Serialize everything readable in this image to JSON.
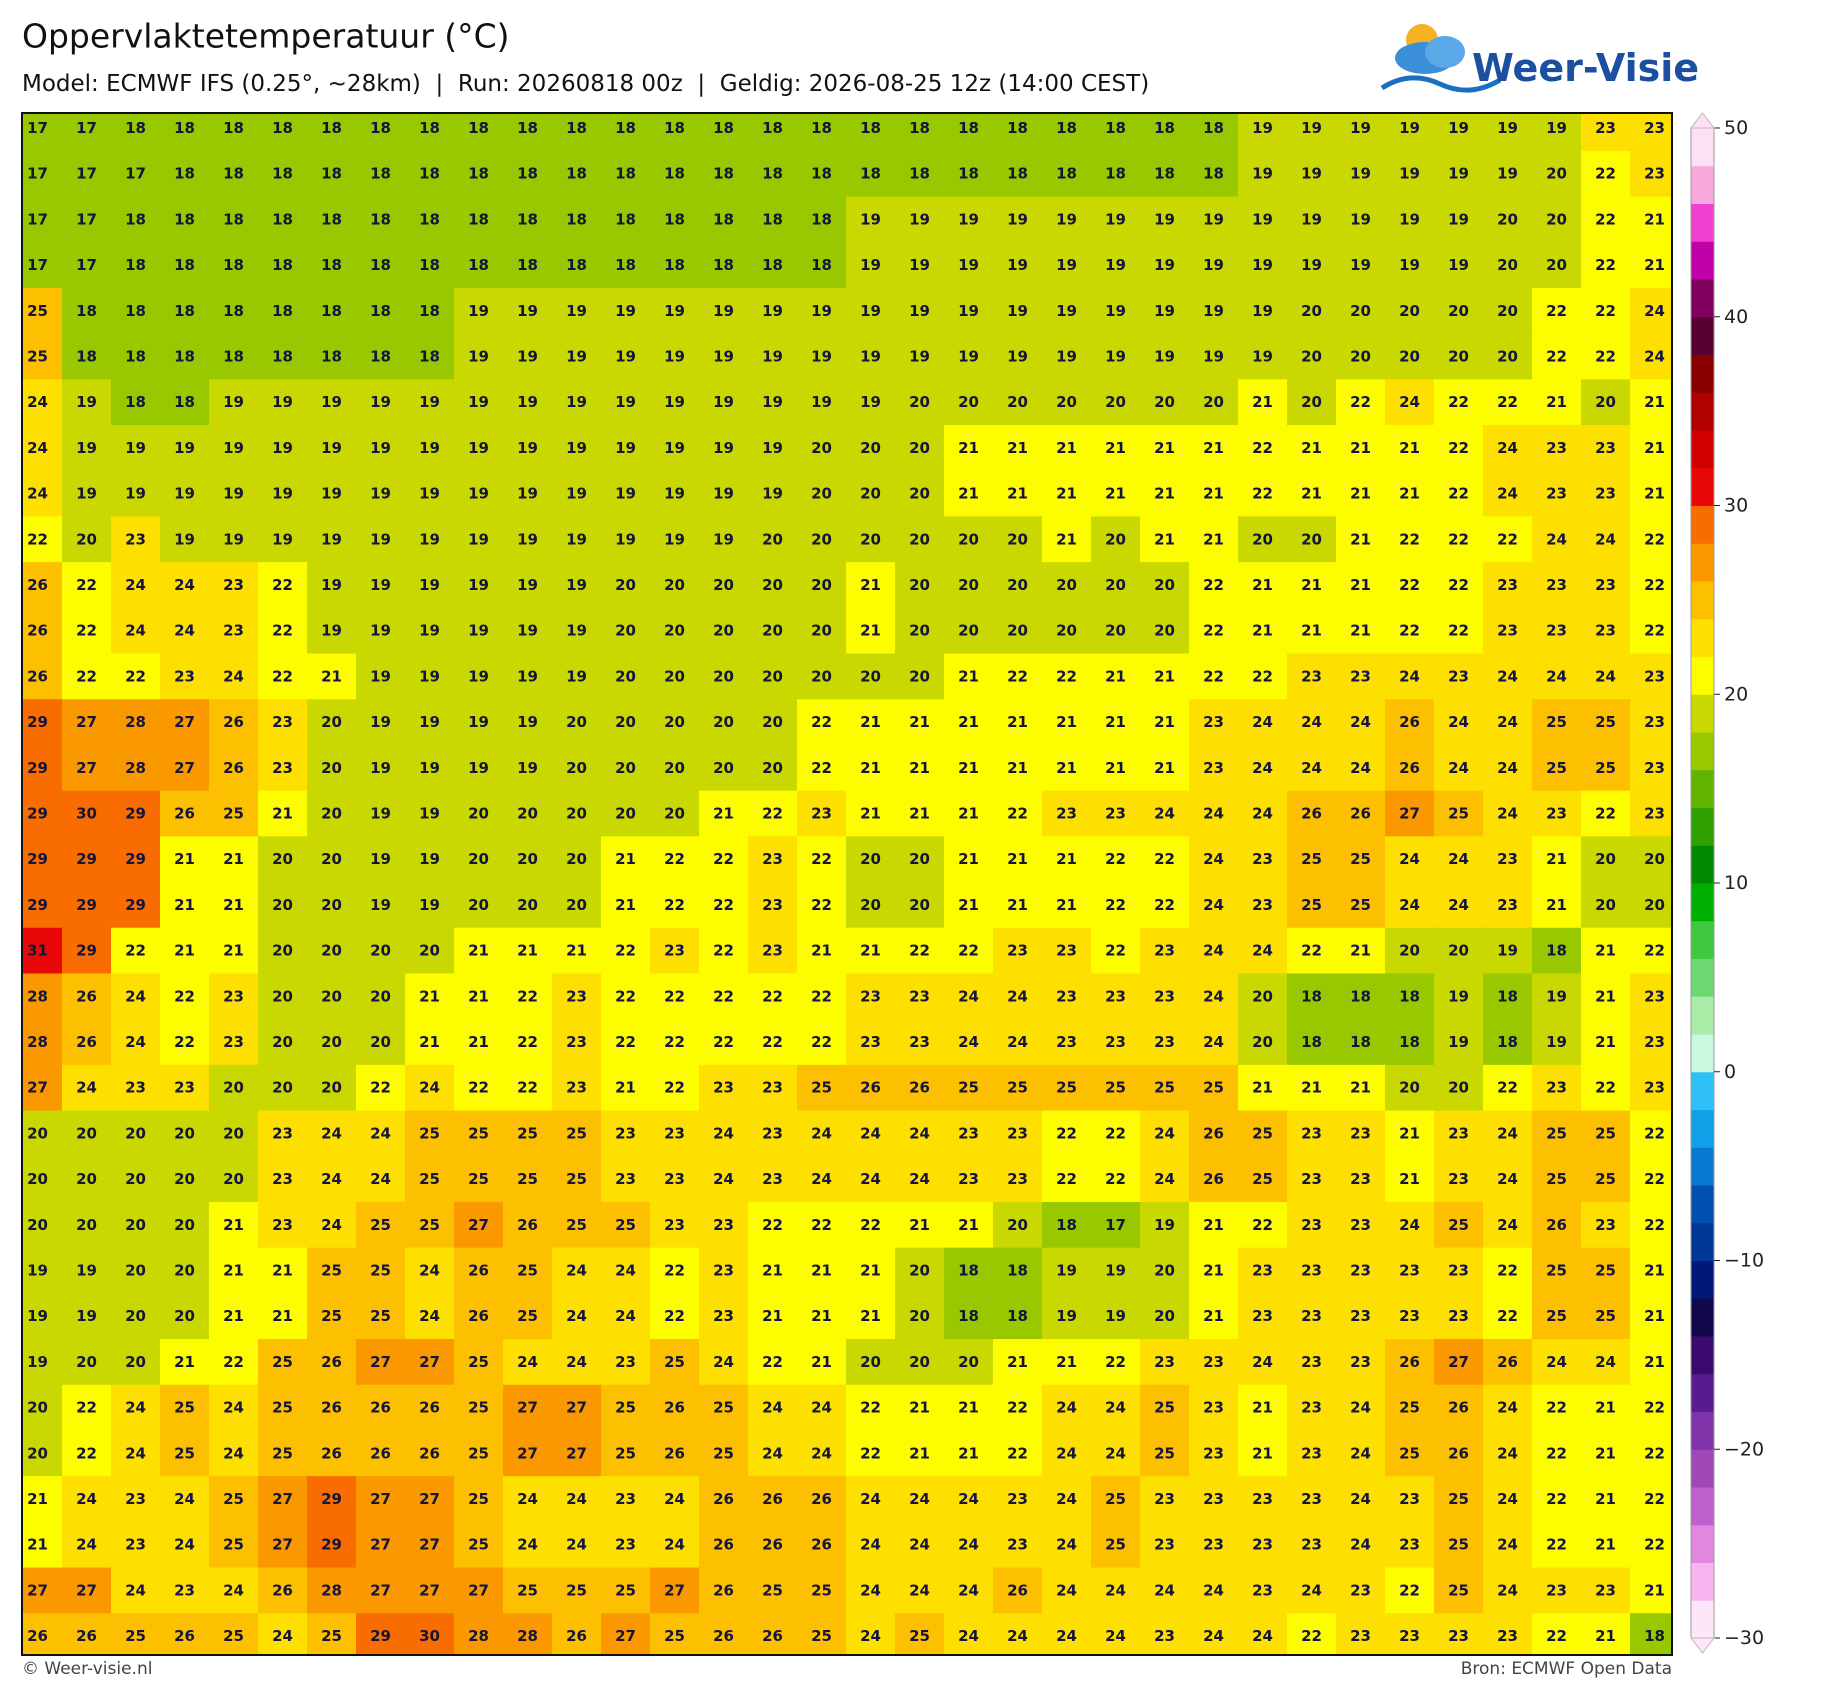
{
  "header": {
    "title": "Oppervlaktetemperatuur (°C)",
    "subtitle": "Model: ECMWF IFS (0.25°, ~28km)  |  Run: 20260818 00z  |  Geldig: 2026-08-25 12z (14:00 CEST)"
  },
  "logo": {
    "text": "Weer-Visie"
  },
  "map": {
    "values": [
      [
        17,
        17,
        18,
        18,
        18,
        18,
        18,
        18,
        18,
        18,
        18,
        18,
        18,
        18,
        18,
        18,
        18,
        18,
        18,
        18,
        18,
        18,
        18,
        18,
        18,
        19,
        19,
        19,
        19,
        19,
        19,
        19,
        23,
        23
      ],
      [
        17,
        17,
        17,
        18,
        18,
        18,
        18,
        18,
        18,
        18,
        18,
        18,
        18,
        18,
        18,
        18,
        18,
        18,
        18,
        18,
        18,
        18,
        18,
        18,
        18,
        19,
        19,
        19,
        19,
        19,
        19,
        20,
        22,
        23
      ],
      [
        17,
        17,
        18,
        18,
        18,
        18,
        18,
        18,
        18,
        18,
        18,
        18,
        18,
        18,
        18,
        18,
        18,
        19,
        19,
        19,
        19,
        19,
        19,
        19,
        19,
        19,
        19,
        19,
        19,
        19,
        20,
        20,
        22,
        21
      ],
      [
        17,
        17,
        18,
        18,
        18,
        18,
        18,
        18,
        18,
        18,
        18,
        18,
        18,
        18,
        18,
        18,
        18,
        19,
        19,
        19,
        19,
        19,
        19,
        19,
        19,
        19,
        19,
        19,
        19,
        19,
        20,
        20,
        22,
        21
      ],
      [
        25,
        18,
        18,
        18,
        18,
        18,
        18,
        18,
        18,
        19,
        19,
        19,
        19,
        19,
        19,
        19,
        19,
        19,
        19,
        19,
        19,
        19,
        19,
        19,
        19,
        19,
        20,
        20,
        20,
        20,
        20,
        22,
        22,
        24
      ],
      [
        25,
        18,
        18,
        18,
        18,
        18,
        18,
        18,
        18,
        19,
        19,
        19,
        19,
        19,
        19,
        19,
        19,
        19,
        19,
        19,
        19,
        19,
        19,
        19,
        19,
        19,
        20,
        20,
        20,
        20,
        20,
        22,
        22,
        24
      ],
      [
        24,
        19,
        18,
        18,
        19,
        19,
        19,
        19,
        19,
        19,
        19,
        19,
        19,
        19,
        19,
        19,
        19,
        19,
        20,
        20,
        20,
        20,
        20,
        20,
        20,
        21,
        20,
        22,
        24,
        22,
        22,
        21,
        20,
        21
      ],
      [
        24,
        19,
        19,
        19,
        19,
        19,
        19,
        19,
        19,
        19,
        19,
        19,
        19,
        19,
        19,
        19,
        20,
        20,
        20,
        21,
        21,
        21,
        21,
        21,
        21,
        22,
        21,
        21,
        21,
        22,
        24,
        23,
        23,
        21
      ],
      [
        24,
        19,
        19,
        19,
        19,
        19,
        19,
        19,
        19,
        19,
        19,
        19,
        19,
        19,
        19,
        19,
        20,
        20,
        20,
        21,
        21,
        21,
        21,
        21,
        21,
        22,
        21,
        21,
        21,
        22,
        24,
        23,
        23,
        21
      ],
      [
        22,
        20,
        23,
        19,
        19,
        19,
        19,
        19,
        19,
        19,
        19,
        19,
        19,
        19,
        19,
        20,
        20,
        20,
        20,
        20,
        20,
        21,
        20,
        21,
        21,
        20,
        20,
        21,
        22,
        22,
        22,
        24,
        24,
        22
      ],
      [
        26,
        22,
        24,
        24,
        23,
        22,
        19,
        19,
        19,
        19,
        19,
        19,
        20,
        20,
        20,
        20,
        20,
        21,
        20,
        20,
        20,
        20,
        20,
        20,
        22,
        21,
        21,
        21,
        22,
        22,
        23,
        23,
        23,
        22
      ],
      [
        26,
        22,
        24,
        24,
        23,
        22,
        19,
        19,
        19,
        19,
        19,
        19,
        20,
        20,
        20,
        20,
        20,
        21,
        20,
        20,
        20,
        20,
        20,
        20,
        22,
        21,
        21,
        21,
        22,
        22,
        23,
        23,
        23,
        22
      ],
      [
        26,
        22,
        22,
        23,
        24,
        22,
        21,
        19,
        19,
        19,
        19,
        19,
        20,
        20,
        20,
        20,
        20,
        20,
        20,
        21,
        22,
        22,
        21,
        21,
        22,
        22,
        23,
        23,
        24,
        23,
        24,
        24,
        24,
        23
      ],
      [
        29,
        27,
        28,
        27,
        26,
        23,
        20,
        19,
        19,
        19,
        19,
        20,
        20,
        20,
        20,
        20,
        22,
        21,
        21,
        21,
        21,
        21,
        21,
        21,
        23,
        24,
        24,
        24,
        26,
        24,
        24,
        25,
        25,
        23
      ],
      [
        29,
        27,
        28,
        27,
        26,
        23,
        20,
        19,
        19,
        19,
        19,
        20,
        20,
        20,
        20,
        20,
        22,
        21,
        21,
        21,
        21,
        21,
        21,
        21,
        23,
        24,
        24,
        24,
        26,
        24,
        24,
        25,
        25,
        23
      ],
      [
        29,
        30,
        29,
        26,
        25,
        21,
        20,
        19,
        19,
        20,
        20,
        20,
        20,
        20,
        21,
        22,
        23,
        21,
        21,
        21,
        22,
        23,
        23,
        24,
        24,
        24,
        26,
        26,
        27,
        25,
        24,
        23,
        22,
        23
      ],
      [
        29,
        29,
        29,
        21,
        21,
        20,
        20,
        19,
        19,
        20,
        20,
        20,
        21,
        22,
        22,
        23,
        22,
        20,
        20,
        21,
        21,
        21,
        22,
        22,
        24,
        23,
        25,
        25,
        24,
        24,
        23,
        21,
        20,
        20
      ],
      [
        29,
        29,
        29,
        21,
        21,
        20,
        20,
        19,
        19,
        20,
        20,
        20,
        21,
        22,
        22,
        23,
        22,
        20,
        20,
        21,
        21,
        21,
        22,
        22,
        24,
        23,
        25,
        25,
        24,
        24,
        23,
        21,
        20,
        20
      ],
      [
        31,
        29,
        22,
        21,
        21,
        20,
        20,
        20,
        20,
        21,
        21,
        21,
        22,
        23,
        22,
        23,
        21,
        21,
        22,
        22,
        23,
        23,
        22,
        23,
        24,
        24,
        22,
        21,
        20,
        20,
        19,
        18,
        21,
        22
      ],
      [
        28,
        26,
        24,
        22,
        23,
        20,
        20,
        20,
        21,
        21,
        22,
        23,
        22,
        22,
        22,
        22,
        22,
        23,
        23,
        24,
        24,
        23,
        23,
        23,
        24,
        20,
        18,
        18,
        18,
        19,
        18,
        19,
        21,
        23
      ],
      [
        28,
        26,
        24,
        22,
        23,
        20,
        20,
        20,
        21,
        21,
        22,
        23,
        22,
        22,
        22,
        22,
        22,
        23,
        23,
        24,
        24,
        23,
        23,
        23,
        24,
        20,
        18,
        18,
        18,
        19,
        18,
        19,
        21,
        23
      ],
      [
        27,
        24,
        23,
        23,
        20,
        20,
        20,
        22,
        24,
        22,
        22,
        23,
        21,
        22,
        23,
        23,
        25,
        26,
        26,
        25,
        25,
        25,
        25,
        25,
        25,
        21,
        21,
        21,
        20,
        20,
        22,
        23,
        22,
        23
      ],
      [
        20,
        20,
        20,
        20,
        20,
        23,
        24,
        24,
        25,
        25,
        25,
        25,
        23,
        23,
        24,
        23,
        24,
        24,
        24,
        23,
        23,
        22,
        22,
        24,
        26,
        25,
        23,
        23,
        21,
        23,
        24,
        25,
        25,
        22
      ],
      [
        20,
        20,
        20,
        20,
        20,
        23,
        24,
        24,
        25,
        25,
        25,
        25,
        23,
        23,
        24,
        23,
        24,
        24,
        24,
        23,
        23,
        22,
        22,
        24,
        26,
        25,
        23,
        23,
        21,
        23,
        24,
        25,
        25,
        22
      ],
      [
        20,
        20,
        20,
        20,
        21,
        23,
        24,
        25,
        25,
        27,
        26,
        25,
        25,
        23,
        23,
        22,
        22,
        22,
        21,
        21,
        20,
        18,
        17,
        19,
        21,
        22,
        23,
        23,
        24,
        25,
        24,
        26,
        23,
        22
      ],
      [
        19,
        19,
        20,
        20,
        21,
        21,
        25,
        25,
        24,
        26,
        25,
        24,
        24,
        22,
        23,
        21,
        21,
        21,
        20,
        18,
        18,
        19,
        19,
        20,
        21,
        23,
        23,
        23,
        23,
        23,
        22,
        25,
        25,
        21
      ],
      [
        19,
        19,
        20,
        20,
        21,
        21,
        25,
        25,
        24,
        26,
        25,
        24,
        24,
        22,
        23,
        21,
        21,
        21,
        20,
        18,
        18,
        19,
        19,
        20,
        21,
        23,
        23,
        23,
        23,
        23,
        22,
        25,
        25,
        21
      ],
      [
        19,
        20,
        20,
        21,
        22,
        25,
        26,
        27,
        27,
        25,
        24,
        24,
        23,
        25,
        24,
        22,
        21,
        20,
        20,
        20,
        21,
        21,
        22,
        23,
        23,
        24,
        23,
        23,
        26,
        27,
        26,
        24,
        24,
        21
      ],
      [
        20,
        22,
        24,
        25,
        24,
        25,
        26,
        26,
        26,
        25,
        27,
        27,
        25,
        26,
        25,
        24,
        24,
        22,
        21,
        21,
        22,
        24,
        24,
        25,
        23,
        21,
        23,
        24,
        25,
        26,
        24,
        22,
        21,
        22
      ],
      [
        20,
        22,
        24,
        25,
        24,
        25,
        26,
        26,
        26,
        25,
        27,
        27,
        25,
        26,
        25,
        24,
        24,
        22,
        21,
        21,
        22,
        24,
        24,
        25,
        23,
        21,
        23,
        24,
        25,
        26,
        24,
        22,
        21,
        22
      ],
      [
        21,
        24,
        23,
        24,
        25,
        27,
        29,
        27,
        27,
        25,
        24,
        24,
        23,
        24,
        26,
        26,
        26,
        24,
        24,
        24,
        23,
        24,
        25,
        23,
        23,
        23,
        23,
        24,
        23,
        25,
        24,
        22,
        21,
        22
      ],
      [
        21,
        24,
        23,
        24,
        25,
        27,
        29,
        27,
        27,
        25,
        24,
        24,
        23,
        24,
        26,
        26,
        26,
        24,
        24,
        24,
        23,
        24,
        25,
        23,
        23,
        23,
        23,
        24,
        23,
        25,
        24,
        22,
        21,
        22
      ],
      [
        27,
        27,
        24,
        23,
        24,
        26,
        28,
        27,
        27,
        27,
        25,
        25,
        25,
        27,
        26,
        25,
        25,
        24,
        24,
        24,
        26,
        24,
        24,
        24,
        24,
        23,
        24,
        23,
        22,
        25,
        24,
        23,
        23,
        21
      ],
      [
        26,
        26,
        25,
        26,
        25,
        24,
        25,
        29,
        30,
        28,
        28,
        26,
        27,
        25,
        26,
        26,
        25,
        24,
        25,
        24,
        24,
        24,
        24,
        23,
        24,
        24,
        22,
        23,
        23,
        23,
        23,
        22,
        21,
        18
      ]
    ]
  },
  "colorbar": {
    "lim": [
      -30,
      50
    ],
    "ticks": [
      50,
      40,
      30,
      20,
      10,
      0,
      {
        "value": -10,
        "label": "−10"
      },
      {
        "value": -20,
        "label": "−20"
      },
      {
        "value": -30,
        "label": "−30"
      }
    ],
    "colors": [
      "#fde6f8",
      "#f8b4ee",
      "#e088e0",
      "#c060cc",
      "#a048b8",
      "#7e34a8",
      "#5a1a90",
      "#3a0a6e",
      "#10084a",
      "#001878",
      "#003898",
      "#0050b0",
      "#0878d0",
      "#10a0e8",
      "#30c0f8",
      "#c8f8e0",
      "#a8eca8",
      "#70d870",
      "#40c840",
      "#00b000",
      "#008800",
      "#30a000",
      "#60b400",
      "#98c800",
      "#c8d800",
      "#fdfd00",
      "#fde000",
      "#fcc000",
      "#fa9800",
      "#f86c00",
      "#e80808",
      "#d00000",
      "#b00000",
      "#880000",
      "#580030",
      "#800060",
      "#c000a8",
      "#f040d0",
      "#f8a8dc",
      "#fde0f4"
    ]
  },
  "footer": {
    "left": "© Weer-visie.nl",
    "right": "Bron: ECMWF Open Data"
  }
}
